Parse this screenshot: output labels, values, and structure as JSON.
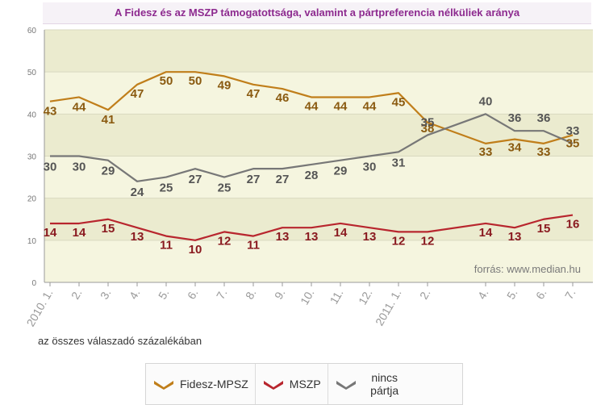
{
  "colors": {
    "fidesz": "#c07e1a",
    "mszp": "#b8262e",
    "nincs": "#777777",
    "fidesz_text": "#8a5a10",
    "mszp_text": "#8a1a20",
    "nincs_text": "#555555",
    "band_light": "#f5f5df",
    "band_dark": "#ebebcf"
  },
  "legend": [
    {
      "key": "fidesz",
      "label": "Fidesz-MPSZ",
      "icon": "chevron-icon"
    },
    {
      "key": "mszp",
      "label": "MSZP",
      "icon": "chevron-icon"
    },
    {
      "key": "nincs",
      "label": "nincs pártja",
      "icon": "chevron-icon"
    }
  ],
  "chart_data": {
    "type": "line",
    "title": "A Fidesz és az MSZP támogatottsága, valamint a pártpreferencia nélküliek aránya",
    "subtitle": "",
    "xlabel": "az összes válaszadó százalékában",
    "ylabel": "",
    "ylim": [
      0,
      60
    ],
    "yticks": [
      0,
      10,
      20,
      30,
      40,
      50,
      60
    ],
    "grid": true,
    "legend_position": "bottom",
    "source_note": "forrás: www.median.hu",
    "x": [
      {
        "label": "2010. 1.",
        "month": 1
      },
      {
        "label": "2.",
        "month": 2
      },
      {
        "label": "3.",
        "month": 3
      },
      {
        "label": "4.",
        "month": 4
      },
      {
        "label": "5.",
        "month": 5
      },
      {
        "label": "6.",
        "month": 6
      },
      {
        "label": "7.",
        "month": 7
      },
      {
        "label": "8.",
        "month": 8
      },
      {
        "label": "9.",
        "month": 9
      },
      {
        "label": "10.",
        "month": 10
      },
      {
        "label": "11.",
        "month": 11
      },
      {
        "label": "12.",
        "month": 12
      },
      {
        "label": "2011. 1.",
        "month": 13
      },
      {
        "label": "2.",
        "month": 14
      },
      {
        "label": "4.",
        "month": 16
      },
      {
        "label": "5.",
        "month": 17
      },
      {
        "label": "6.",
        "month": 18
      },
      {
        "label": "7.",
        "month": 19
      }
    ],
    "series": [
      {
        "key": "fidesz",
        "name": "Fidesz-MPSZ",
        "values": [
          43,
          44,
          41,
          47,
          50,
          50,
          49,
          47,
          46,
          44,
          44,
          44,
          45,
          38,
          33,
          34,
          33,
          35
        ]
      },
      {
        "key": "mszp",
        "name": "MSZP",
        "values": [
          14,
          14,
          15,
          13,
          11,
          10,
          12,
          11,
          13,
          13,
          14,
          13,
          12,
          12,
          14,
          13,
          15,
          16
        ]
      },
      {
        "key": "nincs",
        "name": "nincs pártja",
        "values": [
          30,
          30,
          29,
          24,
          25,
          27,
          25,
          27,
          27,
          28,
          29,
          30,
          31,
          35,
          40,
          36,
          36,
          33
        ]
      }
    ]
  }
}
